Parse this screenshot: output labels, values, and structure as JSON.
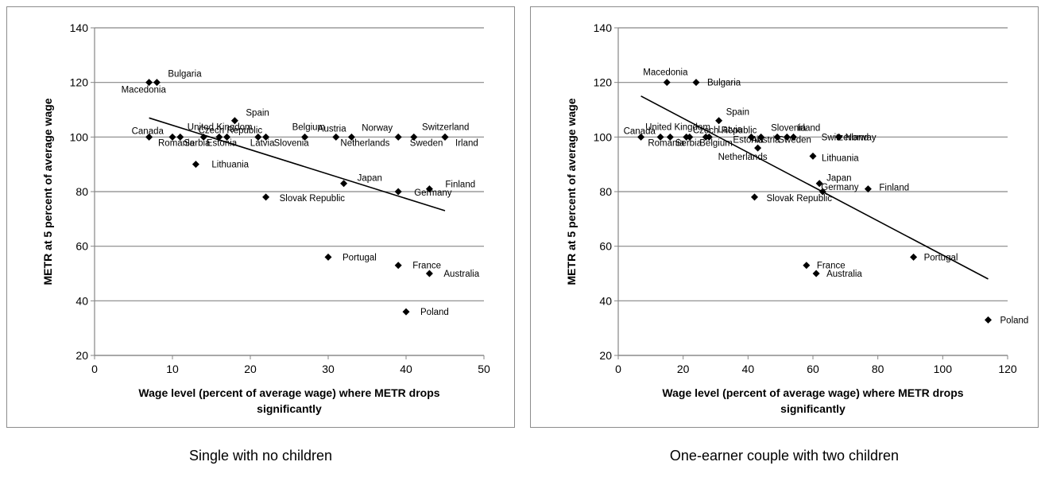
{
  "chart_data": [
    {
      "type": "scatter",
      "caption": "Single with no children",
      "xlabel": "Wage level (percent of average wage) where METR drops significantly",
      "ylabel": "METR at 5 percent of average wage",
      "xlim": [
        0,
        50
      ],
      "ylim": [
        20,
        140
      ],
      "xticks": [
        0,
        10,
        20,
        30,
        40,
        50
      ],
      "yticks": [
        20,
        40,
        60,
        80,
        100,
        120,
        140
      ],
      "grid": "horizontal",
      "trendline": [
        [
          7,
          107
        ],
        [
          45,
          73
        ]
      ],
      "points": [
        {
          "label": "Macedonia",
          "x": 7,
          "y": 120
        },
        {
          "label": "Bulgaria",
          "x": 8,
          "y": 120
        },
        {
          "label": "Canada",
          "x": 7,
          "y": 100
        },
        {
          "label": "Romania",
          "x": 10,
          "y": 100
        },
        {
          "label": "United Kingdom",
          "x": 11,
          "y": 100
        },
        {
          "label": "Serbia",
          "x": 14,
          "y": 100
        },
        {
          "label": "Estonia",
          "x": 16,
          "y": 100
        },
        {
          "label": "Czech Republic",
          "x": 17,
          "y": 100
        },
        {
          "label": "Spain",
          "x": 18,
          "y": 106
        },
        {
          "label": "Latvia",
          "x": 21,
          "y": 100
        },
        {
          "label": "Slovenia",
          "x": 22,
          "y": 100
        },
        {
          "label": "Belgium",
          "x": 27,
          "y": 100
        },
        {
          "label": "Austria",
          "x": 31,
          "y": 100
        },
        {
          "label": "Netherlands",
          "x": 33,
          "y": 100
        },
        {
          "label": "Norway",
          "x": 39,
          "y": 100
        },
        {
          "label": "Sweden",
          "x": 41,
          "y": 100
        },
        {
          "label": "Switzerland",
          "x": 45,
          "y": 100
        },
        {
          "label": "Irland",
          "x": 45,
          "y": 100
        },
        {
          "label": "Lithuania",
          "x": 13,
          "y": 90
        },
        {
          "label": "Japan",
          "x": 32,
          "y": 83
        },
        {
          "label": "Germany",
          "x": 39,
          "y": 80
        },
        {
          "label": "Finland",
          "x": 43,
          "y": 81
        },
        {
          "label": "Slovak Republic",
          "x": 22,
          "y": 78
        },
        {
          "label": "Portugal",
          "x": 30,
          "y": 56
        },
        {
          "label": "France",
          "x": 39,
          "y": 53
        },
        {
          "label": "Australia",
          "x": 43,
          "y": 50
        },
        {
          "label": "Poland",
          "x": 40,
          "y": 36
        }
      ]
    },
    {
      "type": "scatter",
      "caption": "One-earner couple with two children",
      "xlabel": "Wage level (percent of average wage) where METR drops significantly",
      "ylabel": "METR at 5 percent of average wage",
      "xlim": [
        0,
        120
      ],
      "ylim": [
        20,
        140
      ],
      "xticks": [
        0,
        20,
        40,
        60,
        80,
        100,
        120
      ],
      "yticks": [
        20,
        40,
        60,
        80,
        100,
        120,
        140
      ],
      "grid": "horizontal",
      "trendline": [
        [
          7,
          115
        ],
        [
          114,
          48
        ]
      ],
      "points": [
        {
          "label": "Macedonia",
          "x": 15,
          "y": 120
        },
        {
          "label": "Bulgaria",
          "x": 24,
          "y": 120
        },
        {
          "label": "Canada",
          "x": 7,
          "y": 100
        },
        {
          "label": "United Kingdom",
          "x": 13,
          "y": 100
        },
        {
          "label": "Romania",
          "x": 16,
          "y": 100
        },
        {
          "label": "Serbia",
          "x": 21,
          "y": 100
        },
        {
          "label": "Czech Republic",
          "x": 22,
          "y": 100
        },
        {
          "label": "Belgium",
          "x": 27,
          "y": 100
        },
        {
          "label": "Latvia",
          "x": 28,
          "y": 100
        },
        {
          "label": "Spain",
          "x": 31,
          "y": 106
        },
        {
          "label": "Estonia",
          "x": 41,
          "y": 100
        },
        {
          "label": "Austria",
          "x": 44,
          "y": 100
        },
        {
          "label": "Slovenia",
          "x": 49,
          "y": 100
        },
        {
          "label": "Sweden",
          "x": 52,
          "y": 100
        },
        {
          "label": "Irland",
          "x": 54,
          "y": 100
        },
        {
          "label": "Switzerland",
          "x": 68,
          "y": 100
        },
        {
          "label": "Norway",
          "x": 68,
          "y": 100
        },
        {
          "label": "Netherlands",
          "x": 43,
          "y": 96
        },
        {
          "label": "Lithuania",
          "x": 60,
          "y": 93
        },
        {
          "label": "Japan",
          "x": 62,
          "y": 83
        },
        {
          "label": "Germany",
          "x": 63,
          "y": 80
        },
        {
          "label": "Finland",
          "x": 77,
          "y": 81
        },
        {
          "label": "Slovak Republic",
          "x": 42,
          "y": 78
        },
        {
          "label": "Portugal",
          "x": 91,
          "y": 56
        },
        {
          "label": "France",
          "x": 58,
          "y": 53
        },
        {
          "label": "Australia",
          "x": 61,
          "y": 50
        },
        {
          "label": "Poland",
          "x": 114,
          "y": 33
        }
      ]
    }
  ]
}
